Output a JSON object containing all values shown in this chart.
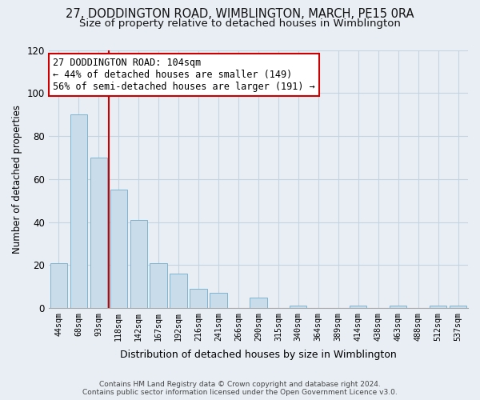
{
  "title": "27, DODDINGTON ROAD, WIMBLINGTON, MARCH, PE15 0RA",
  "subtitle": "Size of property relative to detached houses in Wimblington",
  "xlabel": "Distribution of detached houses by size in Wimblington",
  "ylabel": "Number of detached properties",
  "bar_labels": [
    "44sqm",
    "68sqm",
    "93sqm",
    "118sqm",
    "142sqm",
    "167sqm",
    "192sqm",
    "216sqm",
    "241sqm",
    "266sqm",
    "290sqm",
    "315sqm",
    "340sqm",
    "364sqm",
    "389sqm",
    "414sqm",
    "438sqm",
    "463sqm",
    "488sqm",
    "512sqm",
    "537sqm"
  ],
  "bar_values": [
    21,
    90,
    70,
    55,
    41,
    21,
    16,
    9,
    7,
    0,
    5,
    0,
    1,
    0,
    0,
    1,
    0,
    1,
    0,
    1,
    1
  ],
  "bar_color": "#c8dcea",
  "bar_edge_color": "#7fb3d0",
  "vline_color": "#cc0000",
  "ylim": [
    0,
    120
  ],
  "yticks": [
    0,
    20,
    40,
    60,
    80,
    100,
    120
  ],
  "annotation_title": "27 DODDINGTON ROAD: 104sqm",
  "annotation_line1": "← 44% of detached houses are smaller (149)",
  "annotation_line2": "56% of semi-detached houses are larger (191) →",
  "annotation_box_color": "#ffffff",
  "annotation_box_edge": "#cc0000",
  "footer_line1": "Contains HM Land Registry data © Crown copyright and database right 2024.",
  "footer_line2": "Contains public sector information licensed under the Open Government Licence v3.0.",
  "background_color": "#e8eef4",
  "plot_bg_color": "#e8eef4",
  "grid_color": "#c5d5e0"
}
